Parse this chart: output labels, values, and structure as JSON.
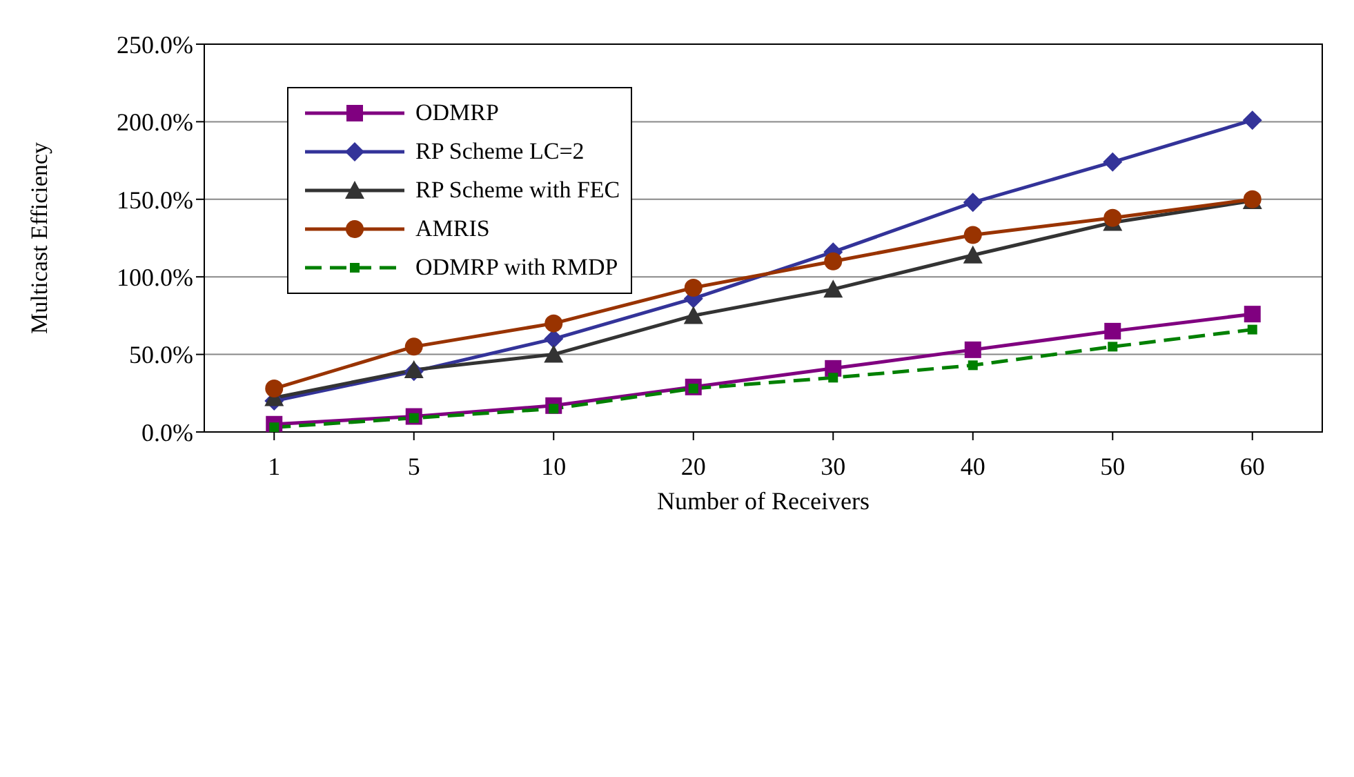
{
  "chart_data": {
    "type": "line",
    "xlabel": "Number of Receivers",
    "ylabel": "Multicast Efficiency",
    "categories": [
      "1",
      "5",
      "10",
      "20",
      "30",
      "40",
      "50",
      "60"
    ],
    "series": [
      {
        "name": "ODMRP",
        "color": "#800080",
        "marker": "square",
        "line_style": "solid",
        "values": [
          5,
          10,
          17,
          29,
          41,
          53,
          65,
          76
        ]
      },
      {
        "name": "RP Scheme LC=2",
        "color": "#333399",
        "marker": "diamond",
        "line_style": "solid",
        "values": [
          20,
          39,
          60,
          86,
          116,
          148,
          174,
          201
        ]
      },
      {
        "name": "RP Scheme with FEC",
        "color": "#333333",
        "marker": "triangle",
        "line_style": "solid",
        "values": [
          22,
          40,
          50,
          75,
          92,
          114,
          135,
          149
        ]
      },
      {
        "name": "AMRIS",
        "color": "#993300",
        "marker": "circle",
        "line_style": "solid",
        "values": [
          28,
          55,
          70,
          93,
          110,
          127,
          138,
          150
        ]
      },
      {
        "name": "ODMRP with RMDP",
        "color": "#008000",
        "marker": "square",
        "line_style": "dashed",
        "values": [
          3,
          9,
          15,
          28,
          35,
          43,
          55,
          66
        ]
      }
    ],
    "ylim": [
      0,
      250
    ],
    "yticks": [
      {
        "value": 0,
        "label": "0.0%"
      },
      {
        "value": 50,
        "label": "50.0%"
      },
      {
        "value": 100,
        "label": "100.0%"
      },
      {
        "value": 150,
        "label": "150.0%"
      },
      {
        "value": 200,
        "label": "200.0%"
      },
      {
        "value": 250,
        "label": "250.0%"
      }
    ],
    "grid": "y",
    "legend": "top left"
  }
}
